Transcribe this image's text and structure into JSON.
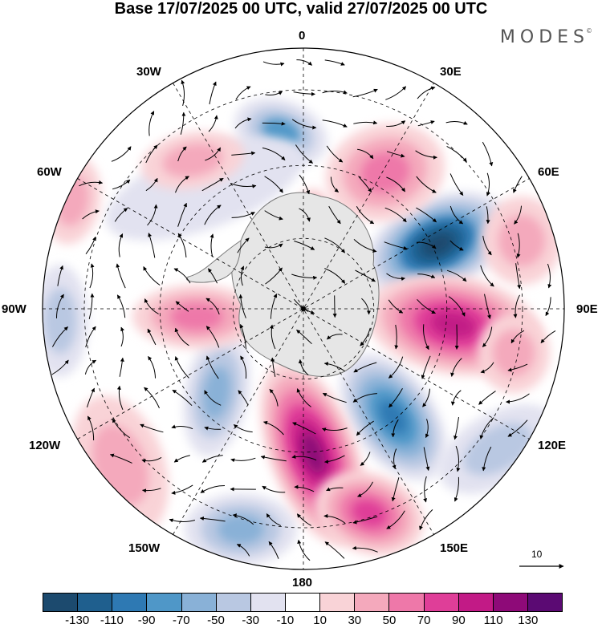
{
  "title": "Base 17/07/2025 00 UTC, valid 27/07/2025 00 UTC",
  "brand": "MODES",
  "brand_mark": "©",
  "map": {
    "projection": "south-polar-stereographic",
    "longitude_labels": {
      "top": "0",
      "top_right": "30E",
      "upper_right": "60E",
      "right": "90E",
      "lower_right": "120E",
      "bottom_right": "150E",
      "bottom": "180",
      "bottom_left": "150W",
      "lower_left": "120W",
      "left": "90W",
      "upper_left": "60W",
      "top_left": "30W"
    },
    "wind_scale_label": "10",
    "colors": {
      "land": "#e6e6e6",
      "coast": "#777777",
      "grid": "#000000",
      "arrow": "#000000"
    }
  },
  "colorbar": {
    "ticks": [
      "-130",
      "-110",
      "-90",
      "-70",
      "-50",
      "-30",
      "-10",
      "10",
      "30",
      "50",
      "70",
      "90",
      "110",
      "130"
    ],
    "colors": [
      "#1c4a6e",
      "#1f5f8e",
      "#2e79b3",
      "#4f97c8",
      "#89b1d7",
      "#b9c8e2",
      "#e2e2f0",
      "#ffffff",
      "#f9d3d7",
      "#f4a9bc",
      "#ee78a9",
      "#df3e98",
      "#c21a86",
      "#8e0a78",
      "#5b0a73"
    ]
  }
}
